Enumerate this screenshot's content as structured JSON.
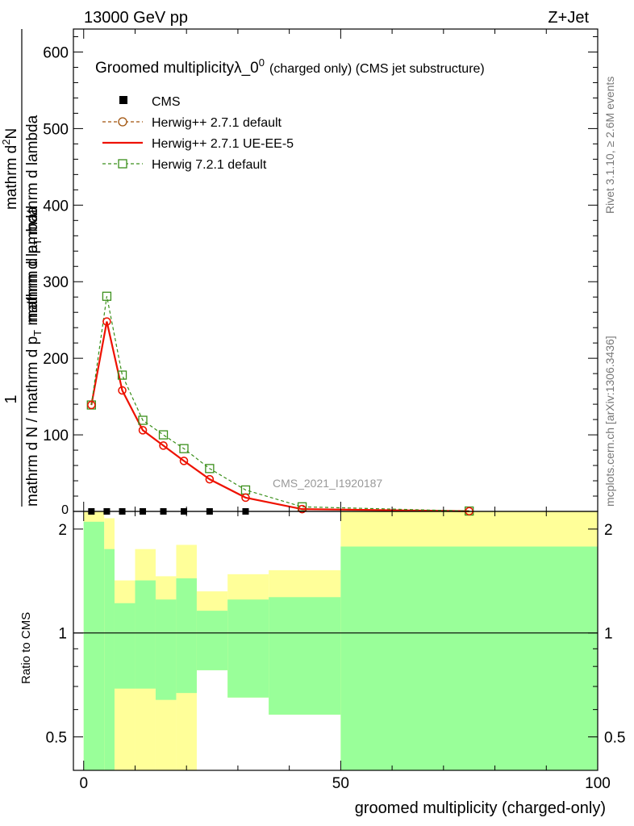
{
  "header": {
    "left": "13000 GeV pp",
    "right": "Z+Jet"
  },
  "title": {
    "main": "Groomed multiplicity",
    "lambda": "λ_0",
    "sup": "0",
    "suffix": "(charged only) (CMS jet substructure)"
  },
  "ylabel": {
    "numerator_one": "1",
    "left_line": "mathrm d N / mathrm d p",
    "left_sub": "T",
    "left_tail": " mathrm d lambda",
    "right_num": "mathrm d",
    "right_sup": "2",
    "right_num_tail": "N",
    "right_den": "mathrm d p",
    "right_den_sub": "T",
    "right_den_tail": " mathrm d lambda"
  },
  "side_text": {
    "rivet": "Rivet 3.1.10, ≥ 2.6M events",
    "mcplots": "mcplots.cern.ch [arXiv:1306.3436]"
  },
  "watermark": "CMS_2021_I1920187",
  "ratio_label": "Ratio to CMS",
  "xlabel": "groomed multiplicity (charged-only)",
  "legend": [
    {
      "label": "CMS",
      "style": "data",
      "color": "#000000"
    },
    {
      "label": "Herwig++ 2.7.1 default",
      "style": "dashed-circle",
      "color": "#a0520a"
    },
    {
      "label": "Herwig++ 2.7.1 UE-EE-5",
      "style": "solid-line",
      "color": "#ee1100"
    },
    {
      "label": "Herwig 7.2.1 default",
      "style": "dashed-square",
      "color": "#3a8f1a"
    }
  ],
  "chart_data": {
    "type": "line",
    "xlim": [
      -2,
      100
    ],
    "ylim": [
      0,
      630
    ],
    "ratio_ylim": [
      0.4,
      2.25
    ],
    "x_ticks": [
      "0",
      "50",
      "100"
    ],
    "y_ticks": [
      "100",
      "200",
      "300",
      "400",
      "500",
      "600"
    ],
    "ratio_ticks": [
      "0.5",
      "1",
      "2"
    ],
    "data_x": [
      1.5,
      4.5,
      7.5,
      11.5,
      15.5,
      19.5,
      24.5,
      31.5,
      42.5,
      75
    ],
    "series": [
      {
        "name": "Herwig++ 2.7.1 default",
        "color": "#a0520a",
        "style": "dashed-circle",
        "values": [
          139,
          248,
          158,
          106,
          86,
          66,
          42,
          18,
          3,
          0.3
        ]
      },
      {
        "name": "Herwig++ 2.7.1 UE-EE-5",
        "color": "#ee1100",
        "style": "solid",
        "values": [
          139,
          248,
          158,
          106,
          86,
          66,
          42,
          18,
          3,
          0.3
        ]
      },
      {
        "name": "Herwig 7.2.1 default",
        "color": "#3a8f1a",
        "style": "dashed-square",
        "values": [
          139,
          281,
          178,
          119,
          100,
          82,
          56,
          28,
          6,
          0.5
        ]
      }
    ],
    "cms_points_x": [
      1.5,
      4.5,
      7.5,
      11.5,
      15.5,
      19.5,
      24.5,
      31.5
    ],
    "cms_points_y": [
      0,
      0,
      0,
      0,
      0,
      0,
      0,
      0
    ],
    "ratio_bands": [
      {
        "x0": 0,
        "x1": 4,
        "g_lo": 0.0,
        "g_hi": 2.1,
        "y_lo": 0.0,
        "y_hi": 2.3
      },
      {
        "x0": 4,
        "x1": 6,
        "g_lo": 0.0,
        "g_hi": 1.75,
        "y_lo": 0.0,
        "y_hi": 2.15
      },
      {
        "x0": 6,
        "x1": 10,
        "g_lo": 0.69,
        "g_hi": 1.22,
        "y_lo": 0.4,
        "y_hi": 1.42
      },
      {
        "x0": 10,
        "x1": 14,
        "g_lo": 0.69,
        "g_hi": 1.42,
        "y_lo": 0.4,
        "y_hi": 1.75
      },
      {
        "x0": 14,
        "x1": 18,
        "g_lo": 0.64,
        "g_hi": 1.25,
        "y_lo": 0.4,
        "y_hi": 1.46
      },
      {
        "x0": 18,
        "x1": 22,
        "g_lo": 0.67,
        "g_hi": 1.44,
        "y_lo": 0.4,
        "y_hi": 1.8
      },
      {
        "x0": 22,
        "x1": 28,
        "g_lo": 0.78,
        "g_hi": 1.16,
        "y_lo": 0.78,
        "y_hi": 1.32
      },
      {
        "x0": 28,
        "x1": 36,
        "g_lo": 0.65,
        "g_hi": 1.25,
        "y_lo": 0.65,
        "y_hi": 1.48
      },
      {
        "x0": 36,
        "x1": 50,
        "g_lo": 0.58,
        "g_hi": 1.27,
        "y_lo": 0.58,
        "y_hi": 1.52
      },
      {
        "x0": 50,
        "x1": 100,
        "g_lo": 0.4,
        "g_hi": 1.78,
        "y_lo": 0.4,
        "y_hi": 2.25
      }
    ]
  }
}
